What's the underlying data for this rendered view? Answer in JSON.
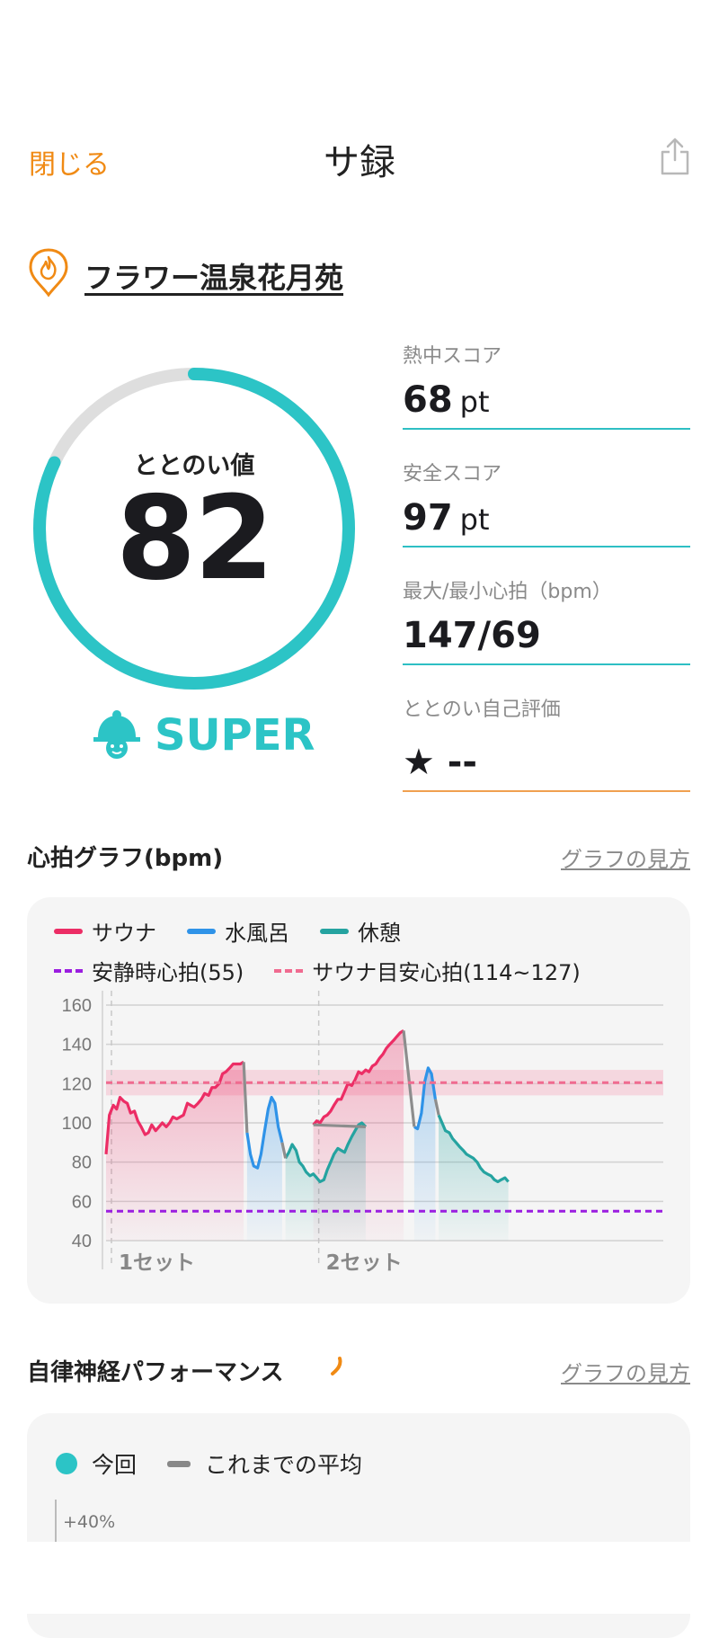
{
  "nav": {
    "close_label": "閉じる",
    "title": "サ録"
  },
  "facility": {
    "name": "フラワー温泉花月苑"
  },
  "score": {
    "label": "ととのい値",
    "value": 82,
    "level": "SUPER"
  },
  "stats": [
    {
      "label": "熱中スコア",
      "value": "68",
      "unit": "pt"
    },
    {
      "label": "安全スコア",
      "value": "97",
      "unit": "pt"
    },
    {
      "label": "最大/最小心拍（bpm）",
      "value": "147/69",
      "unit": ""
    },
    {
      "label": "ととのい自己評価",
      "value": "★ --",
      "unit": ""
    }
  ],
  "heart_section": {
    "title": "心拍グラフ(bpm)",
    "link": "グラフの見方"
  },
  "autonomic_section": {
    "title": "自律神経パフォーマンス",
    "link": "グラフの見方"
  },
  "colors": {
    "accent": "#f08a14",
    "teal": "#2cc4c6",
    "sauna": "#ec2d65",
    "water": "#2f93e8",
    "rest": "#25a3a0",
    "resting": "#9b1ee0",
    "guide": "#f06b90"
  },
  "chart_data": {
    "type": "line",
    "legend": [
      {
        "name": "サウナ",
        "color": "#ec2d65"
      },
      {
        "name": "水風呂",
        "color": "#2f93e8"
      },
      {
        "name": "休憩",
        "color": "#25a3a0"
      }
    ],
    "reference_lines": [
      {
        "name": "安静時心拍(55)",
        "value": 55,
        "color": "#9b1ee0"
      },
      {
        "name": "サウナ目安心拍(114~127)",
        "value": 120.5,
        "band": [
          114,
          127
        ],
        "color": "#f06b90"
      }
    ],
    "yticks": [
      160,
      140,
      120,
      100,
      80,
      60,
      40
    ],
    "ylim": [
      40,
      160
    ],
    "xlim": [
      0,
      100
    ],
    "sets": [
      {
        "label": "1セット",
        "x": 0
      },
      {
        "label": "2セット",
        "x": 37.2
      }
    ],
    "series": [
      {
        "name": "サウナ",
        "segments": [
          [
            [
              0,
              84
            ],
            [
              0.6,
              104
            ],
            [
              1.3,
              109
            ],
            [
              1.9,
              107
            ],
            [
              2.5,
              113
            ],
            [
              3.2,
              111
            ],
            [
              3.8,
              110
            ],
            [
              4.4,
              105
            ],
            [
              5.1,
              106
            ],
            [
              5.7,
              101
            ],
            [
              6.3,
              98
            ],
            [
              7,
              94
            ],
            [
              7.6,
              95
            ],
            [
              8.2,
              99
            ],
            [
              8.9,
              96
            ],
            [
              9.5,
              98
            ],
            [
              10.1,
              100
            ],
            [
              10.8,
              98
            ],
            [
              11.4,
              100
            ],
            [
              12,
              103
            ],
            [
              12.7,
              102
            ],
            [
              13.3,
              103
            ],
            [
              13.9,
              104
            ],
            [
              14.6,
              110
            ],
            [
              15.2,
              109
            ],
            [
              15.8,
              108
            ],
            [
              16.5,
              110
            ],
            [
              17.1,
              112
            ],
            [
              17.7,
              115
            ],
            [
              18.4,
              114
            ],
            [
              19,
              118
            ],
            [
              19.6,
              118
            ],
            [
              20.3,
              120
            ],
            [
              20.9,
              125
            ],
            [
              21.5,
              126
            ],
            [
              22.2,
              128
            ],
            [
              22.8,
              130
            ],
            [
              23.4,
              130
            ],
            [
              24.1,
              130
            ],
            [
              24.7,
              131
            ]
          ],
          [
            [
              37.2,
              99
            ],
            [
              37.8,
              101
            ],
            [
              38.4,
              100
            ],
            [
              39.1,
              103
            ],
            [
              39.7,
              104
            ],
            [
              40.3,
              106
            ],
            [
              40.9,
              109
            ],
            [
              41.6,
              112
            ],
            [
              42.2,
              112
            ],
            [
              42.8,
              116
            ],
            [
              43.4,
              120
            ],
            [
              44.1,
              119
            ],
            [
              44.7,
              122
            ],
            [
              45.3,
              126
            ],
            [
              45.9,
              125
            ],
            [
              46.6,
              127
            ],
            [
              47.2,
              126
            ],
            [
              47.8,
              129
            ],
            [
              48.4,
              130
            ],
            [
              49.1,
              133
            ],
            [
              49.7,
              135
            ],
            [
              50.3,
              138
            ],
            [
              50.9,
              140
            ],
            [
              51.6,
              142
            ],
            [
              52.2,
              144
            ],
            [
              52.8,
              146
            ],
            [
              53.4,
              147
            ]
          ]
        ]
      },
      {
        "name": "水風呂",
        "segments": [
          [
            [
              25.3,
              95
            ],
            [
              25.9,
              84
            ],
            [
              26.5,
              78
            ],
            [
              27.2,
              77
            ],
            [
              27.8,
              84
            ],
            [
              28.4,
              95
            ],
            [
              29.1,
              107
            ],
            [
              29.7,
              113
            ],
            [
              30.3,
              110
            ],
            [
              30.9,
              98
            ],
            [
              31.6,
              90
            ]
          ],
          [
            [
              55.3,
              98
            ],
            [
              55.9,
              97
            ],
            [
              56.6,
              105
            ],
            [
              57.2,
              121
            ],
            [
              57.8,
              128
            ],
            [
              58.4,
              125
            ],
            [
              59.1,
              112
            ]
          ]
        ]
      },
      {
        "name": "休憩",
        "segments": [
          [
            [
              32.2,
              82
            ],
            [
              32.8,
              85
            ],
            [
              33.4,
              89
            ],
            [
              34.1,
              86
            ],
            [
              34.7,
              80
            ],
            [
              35.3,
              78
            ],
            [
              35.9,
              75
            ],
            [
              36.6,
              73
            ],
            [
              37.2,
              74
            ],
            [
              37.8,
              72
            ],
            [
              38.4,
              70
            ],
            [
              39.1,
              71
            ],
            [
              39.7,
              76
            ],
            [
              40.3,
              80
            ],
            [
              40.9,
              84
            ],
            [
              41.6,
              87
            ],
            [
              42.2,
              86
            ],
            [
              42.8,
              85
            ],
            [
              43.4,
              89
            ],
            [
              44.1,
              93
            ],
            [
              44.7,
              96
            ],
            [
              45.3,
              99
            ],
            [
              45.9,
              100
            ],
            [
              46.6,
              98
            ]
          ],
          [
            [
              59.7,
              104
            ],
            [
              60.3,
              100
            ],
            [
              60.9,
              96
            ],
            [
              61.6,
              95
            ],
            [
              62.2,
              92
            ],
            [
              62.8,
              90
            ],
            [
              63.4,
              88
            ],
            [
              64.1,
              86
            ],
            [
              64.7,
              84
            ],
            [
              65.3,
              83
            ],
            [
              65.9,
              82
            ],
            [
              66.6,
              80
            ],
            [
              67.2,
              77
            ],
            [
              67.8,
              75
            ],
            [
              68.4,
              74
            ],
            [
              69.1,
              73
            ],
            [
              69.7,
              71
            ],
            [
              70.3,
              70
            ],
            [
              70.9,
              71
            ],
            [
              71.6,
              72
            ],
            [
              72.2,
              70
            ]
          ]
        ]
      }
    ]
  },
  "autonomic_chart": {
    "legend": [
      {
        "name": "今回",
        "color": "#2cc4c6"
      },
      {
        "name": "これまでの平均",
        "color": "#888888"
      }
    ],
    "first_tick": "+40%"
  }
}
